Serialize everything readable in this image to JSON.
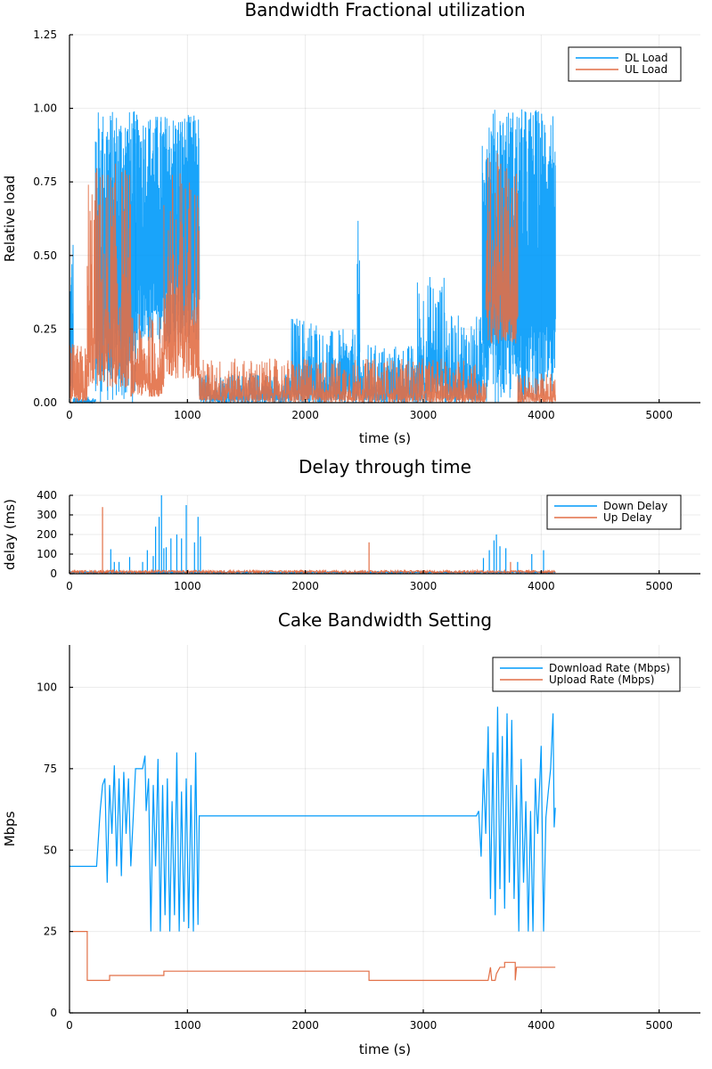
{
  "chart_data": [
    {
      "type": "line",
      "title": "Bandwidth Fractional utilization",
      "xlabel": "time (s)",
      "ylabel": "Relative load",
      "xlim": [
        0,
        5350
      ],
      "ylim": [
        0,
        1.25
      ],
      "xticks": [
        0,
        1000,
        2000,
        3000,
        4000,
        5000
      ],
      "xtick_labels": [
        "0",
        "1000",
        "2000",
        "3000",
        "4000",
        "5000"
      ],
      "yticks": [
        0,
        0.25,
        0.5,
        0.75,
        1.0,
        1.25
      ],
      "ytick_labels": [
        "0.00",
        "0.25",
        "0.50",
        "0.75",
        "1.00",
        "1.25"
      ],
      "grid": true,
      "legend": "top-right",
      "series": [
        {
          "name": "DL Load",
          "color": "#009AFA",
          "segments": [
            {
              "x0": 0,
              "x1": 30,
              "low": 0.0,
              "high": 0.65
            },
            {
              "x0": 30,
              "x1": 220,
              "low": 0.0,
              "high": 0.02
            },
            {
              "x0": 220,
              "x1": 560,
              "low": 0.0,
              "high": 0.995
            },
            {
              "x0": 560,
              "x1": 1100,
              "low": 0.2,
              "high": 0.98
            },
            {
              "x0": 1100,
              "x1": 1880,
              "low": 0.0,
              "high": 0.1
            },
            {
              "x0": 1880,
              "x1": 2120,
              "low": 0.0,
              "high": 0.3
            },
            {
              "x0": 2120,
              "x1": 2440,
              "low": 0.0,
              "high": 0.25
            },
            {
              "x0": 2440,
              "x1": 2460,
              "low": 0.0,
              "high": 0.63
            },
            {
              "x0": 2460,
              "x1": 2950,
              "low": 0.0,
              "high": 0.2
            },
            {
              "x0": 2950,
              "x1": 3200,
              "low": 0.0,
              "high": 0.44
            },
            {
              "x0": 3200,
              "x1": 3500,
              "low": 0.0,
              "high": 0.3
            },
            {
              "x0": 3500,
              "x1": 4120,
              "low": 0.0,
              "high": 1.0
            }
          ]
        },
        {
          "name": "UL Load",
          "color": "#E26F46",
          "segments": [
            {
              "x0": 0,
              "x1": 150,
              "low": 0.0,
              "high": 0.2
            },
            {
              "x0": 150,
              "x1": 520,
              "low": 0.05,
              "high": 0.82
            },
            {
              "x0": 520,
              "x1": 800,
              "low": 0.02,
              "high": 0.3
            },
            {
              "x0": 800,
              "x1": 1100,
              "low": 0.08,
              "high": 0.8
            },
            {
              "x0": 1100,
              "x1": 3450,
              "low": 0.0,
              "high": 0.15
            },
            {
              "x0": 3450,
              "x1": 3530,
              "low": 0.0,
              "high": 0.08
            },
            {
              "x0": 3530,
              "x1": 3800,
              "low": 0.2,
              "high": 0.85
            },
            {
              "x0": 3800,
              "x1": 4120,
              "low": 0.0,
              "high": 0.1
            }
          ]
        }
      ]
    },
    {
      "type": "line",
      "title": "Delay through time",
      "xlabel": "",
      "ylabel": "delay (ms)",
      "xlim": [
        0,
        5350
      ],
      "ylim": [
        0,
        400
      ],
      "xticks": [
        0,
        1000,
        2000,
        3000,
        4000,
        5000
      ],
      "xtick_labels": [
        "0",
        "1000",
        "2000",
        "3000",
        "4000",
        "5000"
      ],
      "yticks": [
        0,
        100,
        200,
        300,
        400
      ],
      "ytick_labels": [
        "0",
        "100",
        "200",
        "300",
        "400"
      ],
      "grid": true,
      "legend": "top-right",
      "series": [
        {
          "name": "Down Delay",
          "color": "#009AFA",
          "spikes": [
            [
              350,
              125
            ],
            [
              380,
              60
            ],
            [
              420,
              60
            ],
            [
              510,
              85
            ],
            [
              620,
              60
            ],
            [
              660,
              120
            ],
            [
              710,
              90
            ],
            [
              730,
              240
            ],
            [
              760,
              290
            ],
            [
              780,
              400
            ],
            [
              800,
              130
            ],
            [
              820,
              135
            ],
            [
              860,
              180
            ],
            [
              910,
              200
            ],
            [
              950,
              180
            ],
            [
              990,
              350
            ],
            [
              1060,
              160
            ],
            [
              1090,
              290
            ],
            [
              1110,
              190
            ],
            [
              3510,
              80
            ],
            [
              3560,
              120
            ],
            [
              3600,
              170
            ],
            [
              3620,
              200
            ],
            [
              3650,
              140
            ],
            [
              3700,
              130
            ],
            [
              3800,
              60
            ],
            [
              3920,
              100
            ],
            [
              4020,
              120
            ]
          ],
          "baseline": 8
        },
        {
          "name": "Up Delay",
          "color": "#E26F46",
          "spikes": [
            [
              280,
              340
            ],
            [
              2540,
              160
            ],
            [
              3740,
              60
            ]
          ],
          "baseline": 12
        }
      ]
    },
    {
      "type": "line",
      "title": "Cake Bandwidth Setting",
      "xlabel": "time (s)",
      "ylabel": "Mbps",
      "xlim": [
        0,
        5350
      ],
      "ylim": [
        0,
        113
      ],
      "xticks": [
        0,
        1000,
        2000,
        3000,
        4000,
        5000
      ],
      "xtick_labels": [
        "0",
        "1000",
        "2000",
        "3000",
        "4000",
        "5000"
      ],
      "yticks": [
        0,
        25,
        50,
        75,
        100
      ],
      "ytick_labels": [
        "0",
        "25",
        "50",
        "75",
        "100"
      ],
      "grid": true,
      "legend": "top-right",
      "series": [
        {
          "name": "Download Rate (Mbps)",
          "color": "#009AFA",
          "points": [
            [
              0,
              45
            ],
            [
              230,
              45
            ],
            [
              260,
              62
            ],
            [
              280,
              70
            ],
            [
              300,
              72
            ],
            [
              320,
              40
            ],
            [
              340,
              70
            ],
            [
              360,
              55
            ],
            [
              380,
              76
            ],
            [
              400,
              45
            ],
            [
              420,
              72
            ],
            [
              440,
              42
            ],
            [
              460,
              74
            ],
            [
              480,
              55
            ],
            [
              500,
              72
            ],
            [
              520,
              45
            ],
            [
              540,
              60
            ],
            [
              560,
              75
            ],
            [
              620,
              75
            ],
            [
              640,
              79
            ],
            [
              650,
              62
            ],
            [
              670,
              72
            ],
            [
              690,
              25
            ],
            [
              710,
              70
            ],
            [
              730,
              45
            ],
            [
              750,
              78
            ],
            [
              770,
              25
            ],
            [
              790,
              70
            ],
            [
              810,
              30
            ],
            [
              830,
              72
            ],
            [
              850,
              25
            ],
            [
              870,
              65
            ],
            [
              890,
              30
            ],
            [
              910,
              80
            ],
            [
              930,
              25
            ],
            [
              950,
              68
            ],
            [
              970,
              28
            ],
            [
              990,
              72
            ],
            [
              1010,
              26
            ],
            [
              1030,
              70
            ],
            [
              1050,
              25
            ],
            [
              1070,
              80
            ],
            [
              1090,
              27
            ],
            [
              1100,
              60.5
            ],
            [
              3450,
              60.5
            ],
            [
              3470,
              62
            ],
            [
              3490,
              48
            ],
            [
              3510,
              75
            ],
            [
              3530,
              55
            ],
            [
              3550,
              88
            ],
            [
              3570,
              35
            ],
            [
              3590,
              80
            ],
            [
              3610,
              30
            ],
            [
              3630,
              94
            ],
            [
              3650,
              38
            ],
            [
              3670,
              85
            ],
            [
              3690,
              32
            ],
            [
              3710,
              92
            ],
            [
              3730,
              40
            ],
            [
              3750,
              90
            ],
            [
              3770,
              35
            ],
            [
              3790,
              70
            ],
            [
              3810,
              25
            ],
            [
              3830,
              78
            ],
            [
              3850,
              40
            ],
            [
              3870,
              65
            ],
            [
              3890,
              25
            ],
            [
              3910,
              62
            ],
            [
              3930,
              25
            ],
            [
              3950,
              72
            ],
            [
              3970,
              55
            ],
            [
              4000,
              82
            ],
            [
              4020,
              25
            ],
            [
              4040,
              60
            ],
            [
              4060,
              68
            ],
            [
              4080,
              75
            ],
            [
              4100,
              92
            ],
            [
              4110,
              57
            ],
            [
              4120,
              63
            ]
          ]
        },
        {
          "name": "Upload Rate (Mbps)",
          "color": "#E26F46",
          "points": [
            [
              0,
              25
            ],
            [
              150,
              25
            ],
            [
              150,
              10
            ],
            [
              340,
              10
            ],
            [
              340,
              11.5
            ],
            [
              800,
              11.5
            ],
            [
              800,
              12.8
            ],
            [
              2540,
              12.8
            ],
            [
              2540,
              10
            ],
            [
              3550,
              10
            ],
            [
              3570,
              14
            ],
            [
              3580,
              10
            ],
            [
              3610,
              10
            ],
            [
              3620,
              12
            ],
            [
              3650,
              14
            ],
            [
              3690,
              14
            ],
            [
              3690,
              15.5
            ],
            [
              3780,
              15.5
            ],
            [
              3780,
              10
            ],
            [
              3790,
              14
            ],
            [
              4120,
              14
            ]
          ]
        }
      ]
    }
  ]
}
